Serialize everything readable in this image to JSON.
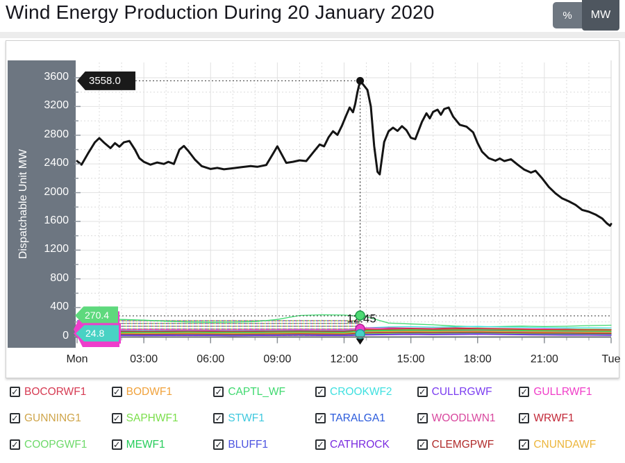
{
  "header": {
    "title": "Wind Energy Production During 20 January 2020",
    "unit_toggle": {
      "percent_label": "%",
      "mw_label": "MW",
      "selected": "MW"
    }
  },
  "chart_data": {
    "type": "line",
    "ylabel": "Dispatchable Unit MW",
    "ylim": [
      0,
      3600
    ],
    "ytick_step": 400,
    "x_hours_range": [
      0,
      24
    ],
    "xticks": [
      {
        "hour": 0,
        "label": "Mon"
      },
      {
        "hour": 3,
        "label": "03:00"
      },
      {
        "hour": 6,
        "label": "06:00"
      },
      {
        "hour": 9,
        "label": "09:00"
      },
      {
        "hour": 12,
        "label": "12:00"
      },
      {
        "hour": 15,
        "label": "15:00"
      },
      {
        "hour": 18,
        "label": "18:00"
      },
      {
        "hour": 21,
        "label": "21:00"
      },
      {
        "hour": 24,
        "label": "Tue"
      }
    ],
    "grid": true,
    "total_series": {
      "name": "Total Wind Production",
      "color": "#141414",
      "points": [
        [
          0,
          2440
        ],
        [
          0.2,
          2390
        ],
        [
          0.5,
          2550
        ],
        [
          0.8,
          2700
        ],
        [
          1,
          2760
        ],
        [
          1.2,
          2700
        ],
        [
          1.5,
          2620
        ],
        [
          1.7,
          2690
        ],
        [
          1.9,
          2640
        ],
        [
          2.1,
          2700
        ],
        [
          2.35,
          2720
        ],
        [
          2.6,
          2600
        ],
        [
          2.8,
          2480
        ],
        [
          3,
          2430
        ],
        [
          3.3,
          2390
        ],
        [
          3.6,
          2420
        ],
        [
          3.9,
          2400
        ],
        [
          4.1,
          2430
        ],
        [
          4.35,
          2400
        ],
        [
          4.6,
          2600
        ],
        [
          4.8,
          2650
        ],
        [
          5,
          2580
        ],
        [
          5.3,
          2460
        ],
        [
          5.6,
          2370
        ],
        [
          6,
          2330
        ],
        [
          6.3,
          2345
        ],
        [
          6.6,
          2325
        ],
        [
          7,
          2340
        ],
        [
          7.4,
          2355
        ],
        [
          7.8,
          2370
        ],
        [
          8.1,
          2360
        ],
        [
          8.5,
          2385
        ],
        [
          8.8,
          2540
        ],
        [
          9,
          2645
        ],
        [
          9.2,
          2530
        ],
        [
          9.4,
          2415
        ],
        [
          9.7,
          2430
        ],
        [
          10,
          2450
        ],
        [
          10.3,
          2440
        ],
        [
          10.6,
          2555
        ],
        [
          10.9,
          2670
        ],
        [
          11.1,
          2645
        ],
        [
          11.3,
          2770
        ],
        [
          11.5,
          2855
        ],
        [
          11.7,
          2805
        ],
        [
          11.9,
          2930
        ],
        [
          12.1,
          3080
        ],
        [
          12.25,
          3185
        ],
        [
          12.4,
          3120
        ],
        [
          12.5,
          3235
        ],
        [
          12.6,
          3400
        ],
        [
          12.72,
          3558
        ],
        [
          12.9,
          3490
        ],
        [
          13.05,
          3430
        ],
        [
          13.2,
          3200
        ],
        [
          13.35,
          2650
        ],
        [
          13.5,
          2290
        ],
        [
          13.6,
          2255
        ],
        [
          13.8,
          2705
        ],
        [
          14,
          2855
        ],
        [
          14.2,
          2905
        ],
        [
          14.4,
          2860
        ],
        [
          14.6,
          2925
        ],
        [
          14.8,
          2870
        ],
        [
          15,
          2765
        ],
        [
          15.2,
          2745
        ],
        [
          15.5,
          2985
        ],
        [
          15.7,
          3105
        ],
        [
          15.85,
          3035
        ],
        [
          16,
          3125
        ],
        [
          16.2,
          3155
        ],
        [
          16.35,
          3085
        ],
        [
          16.5,
          3165
        ],
        [
          16.7,
          3185
        ],
        [
          16.9,
          3060
        ],
        [
          17.2,
          2945
        ],
        [
          17.5,
          2920
        ],
        [
          17.8,
          2840
        ],
        [
          18,
          2690
        ],
        [
          18.2,
          2570
        ],
        [
          18.5,
          2480
        ],
        [
          18.8,
          2445
        ],
        [
          19,
          2475
        ],
        [
          19.2,
          2440
        ],
        [
          19.5,
          2465
        ],
        [
          19.8,
          2390
        ],
        [
          20.1,
          2320
        ],
        [
          20.4,
          2280
        ],
        [
          20.6,
          2305
        ],
        [
          20.9,
          2200
        ],
        [
          21.2,
          2080
        ],
        [
          21.5,
          1990
        ],
        [
          21.8,
          1920
        ],
        [
          22.1,
          1880
        ],
        [
          22.4,
          1830
        ],
        [
          22.7,
          1760
        ],
        [
          23,
          1735
        ],
        [
          23.3,
          1695
        ],
        [
          23.6,
          1640
        ],
        [
          23.8,
          1575
        ],
        [
          23.95,
          1540
        ],
        [
          24,
          1565
        ]
      ]
    },
    "unit_series_hours": [
      0,
      1,
      2,
      3,
      4,
      5,
      6,
      7,
      8,
      9,
      10,
      11,
      12,
      13,
      14,
      15,
      16,
      17,
      18,
      19,
      20,
      21,
      22,
      23,
      24
    ],
    "unit_series": [
      {
        "name": "BOCORWF1",
        "color": "#d63a52",
        "values": [
          55,
          60,
          58,
          62,
          60,
          57,
          55,
          58,
          60,
          62,
          60,
          58,
          57,
          110,
          120,
          115,
          110,
          118,
          112,
          108,
          105,
          100,
          102,
          98,
          95
        ]
      },
      {
        "name": "BODWF1",
        "color": "#f0a13a",
        "values": [
          40,
          42,
          45,
          44,
          46,
          48,
          45,
          43,
          46,
          48,
          50,
          47,
          45,
          80,
          85,
          90,
          88,
          92,
          90,
          86,
          84,
          88,
          85,
          82,
          80
        ]
      },
      {
        "name": "CAPTL_WF",
        "color": "#3fd96f",
        "values": [
          265,
          245,
          235,
          225,
          210,
          200,
          196,
          198,
          205,
          235,
          290,
          300,
          296,
          272,
          185,
          172,
          160,
          142,
          132,
          136,
          142,
          136,
          140,
          150,
          155
        ]
      },
      {
        "name": "CROOKWF2",
        "color": "#3fe0e0",
        "values": [
          70,
          72,
          75,
          74,
          76,
          78,
          75,
          73,
          76,
          78,
          80,
          77,
          75,
          120,
          130,
          135,
          128,
          132,
          138,
          130,
          126,
          122,
          118,
          120,
          116
        ]
      },
      {
        "name": "CULLRGWF",
        "color": "#7a3bf0",
        "values": [
          18,
          20,
          22,
          21,
          23,
          25,
          22,
          20,
          23,
          25,
          26,
          24,
          22,
          30,
          35,
          38,
          34,
          36,
          40,
          36,
          32,
          30,
          28,
          26,
          25
        ]
      },
      {
        "name": "GULLRWF1",
        "color": "#f03cc8",
        "values": [
          85,
          88,
          90,
          92,
          90,
          88,
          86,
          88,
          90,
          92,
          95,
          92,
          90,
          118,
          112,
          108,
          104,
          100,
          98,
          96,
          100,
          104,
          100,
          98,
          96
        ]
      },
      {
        "name": "GUNNING1",
        "color": "#cfa54a",
        "values": [
          25,
          27,
          30,
          28,
          30,
          32,
          30,
          28,
          30,
          32,
          34,
          31,
          30,
          45,
          50,
          55,
          52,
          54,
          58,
          52,
          48,
          46,
          44,
          42,
          40
        ]
      },
      {
        "name": "SAPHWF1",
        "color": "#7ade4a",
        "values": [
          60,
          62,
          65,
          64,
          66,
          68,
          65,
          63,
          66,
          68,
          70,
          67,
          65,
          90,
          95,
          100,
          96,
          98,
          102,
          98,
          94,
          96,
          98,
          100,
          96
        ]
      },
      {
        "name": "STWF1",
        "color": "#3ec8de",
        "values": [
          35,
          37,
          40,
          38,
          40,
          42,
          40,
          38,
          40,
          42,
          44,
          41,
          40,
          60,
          65,
          70,
          66,
          68,
          72,
          66,
          62,
          60,
          58,
          56,
          55
        ]
      },
      {
        "name": "TARALGA1",
        "color": "#2b5bdc",
        "values": [
          30,
          32,
          35,
          33,
          35,
          37,
          35,
          33,
          35,
          37,
          39,
          36,
          35,
          50,
          55,
          60,
          56,
          58,
          62,
          56,
          52,
          50,
          48,
          46,
          45
        ]
      },
      {
        "name": "WOODLWN1",
        "color": "#d8479e",
        "values": [
          45,
          47,
          50,
          48,
          50,
          52,
          50,
          48,
          50,
          52,
          54,
          51,
          50,
          70,
          75,
          80,
          76,
          78,
          82,
          76,
          72,
          70,
          68,
          66,
          65
        ]
      },
      {
        "name": "WRWF1",
        "color": "#c22737",
        "values": [
          65,
          67,
          70,
          68,
          70,
          72,
          70,
          68,
          70,
          72,
          74,
          71,
          70,
          95,
          100,
          105,
          100,
          103,
          108,
          102,
          98,
          96,
          94,
          92,
          90
        ]
      },
      {
        "name": "COOPGWF1",
        "color": "#6ed96a",
        "values": [
          20,
          22,
          25,
          23,
          25,
          27,
          25,
          23,
          25,
          27,
          29,
          26,
          25,
          35,
          40,
          45,
          42,
          44,
          48,
          42,
          38,
          36,
          34,
          32,
          30
        ]
      },
      {
        "name": "MEWF1",
        "color": "#25cc5a",
        "values": [
          50,
          52,
          55,
          53,
          55,
          57,
          55,
          53,
          55,
          57,
          59,
          56,
          55,
          75,
          80,
          85,
          80,
          83,
          88,
          82,
          78,
          76,
          74,
          72,
          70
        ]
      },
      {
        "name": "BLUFF1",
        "color": "#4a51e0",
        "values": [
          12,
          14,
          16,
          15,
          17,
          18,
          16,
          14,
          16,
          18,
          20,
          17,
          16,
          25,
          28,
          32,
          28,
          30,
          34,
          30,
          26,
          24,
          22,
          20,
          20
        ]
      },
      {
        "name": "CATHROCK",
        "color": "#7a2be0",
        "values": [
          8,
          9,
          11,
          10,
          12,
          13,
          11,
          9,
          11,
          13,
          15,
          12,
          11,
          18,
          22,
          26,
          22,
          24,
          28,
          24,
          20,
          18,
          16,
          15,
          14
        ]
      },
      {
        "name": "CLEMGPWF",
        "color": "#b02a2a",
        "values": [
          28,
          30,
          33,
          31,
          33,
          35,
          33,
          31,
          33,
          35,
          37,
          34,
          33,
          48,
          52,
          56,
          52,
          54,
          58,
          52,
          48,
          46,
          44,
          42,
          40
        ]
      },
      {
        "name": "CNUNDAWF",
        "color": "#ecb53a",
        "values": [
          38,
          40,
          43,
          41,
          43,
          45,
          43,
          41,
          43,
          45,
          47,
          44,
          43,
          62,
          66,
          70,
          66,
          68,
          72,
          66,
          62,
          60,
          58,
          56,
          55
        ]
      }
    ],
    "crosshair": {
      "hour": 12.72,
      "time_label": "12:45",
      "peak_value": 3558.0,
      "peak_label": "3558.0",
      "ref_line_value": 285,
      "marker_values": {
        "green": 290,
        "magenta": 105,
        "teal": 30
      },
      "left_callouts": {
        "green_label": "270.4",
        "teal_label": "24.8"
      }
    }
  },
  "legend": {
    "items": [
      {
        "label": "BOCORWF1",
        "color": "#d63a52",
        "checked": true
      },
      {
        "label": "BODWF1",
        "color": "#f0a13a",
        "checked": true
      },
      {
        "label": "CAPTL_WF",
        "color": "#3fd96f",
        "checked": true
      },
      {
        "label": "CROOKWF2",
        "color": "#3fe0e0",
        "checked": true
      },
      {
        "label": "CULLRGWF",
        "color": "#7a3bf0",
        "checked": true
      },
      {
        "label": "GULLRWF1",
        "color": "#f03cc8",
        "checked": true
      },
      {
        "label": "GUNNING1",
        "color": "#cfa54a",
        "checked": true
      },
      {
        "label": "SAPHWF1",
        "color": "#7ade4a",
        "checked": true
      },
      {
        "label": "STWF1",
        "color": "#3ec8de",
        "checked": true
      },
      {
        "label": "TARALGA1",
        "color": "#2b5bdc",
        "checked": true
      },
      {
        "label": "WOODLWN1",
        "color": "#d8479e",
        "checked": true
      },
      {
        "label": "WRWF1",
        "color": "#c22737",
        "checked": true
      },
      {
        "label": "COOPGWF1",
        "color": "#6ed96a",
        "checked": true
      },
      {
        "label": "MEWF1",
        "color": "#25cc5a",
        "checked": true
      },
      {
        "label": "BLUFF1",
        "color": "#4a51e0",
        "checked": true
      },
      {
        "label": "CATHROCK",
        "color": "#7a2be0",
        "checked": true
      },
      {
        "label": "CLEMGPWF",
        "color": "#b02a2a",
        "checked": true
      },
      {
        "label": "CNUNDAWF",
        "color": "#ecb53a",
        "checked": true
      }
    ],
    "check_glyph": "✓"
  }
}
